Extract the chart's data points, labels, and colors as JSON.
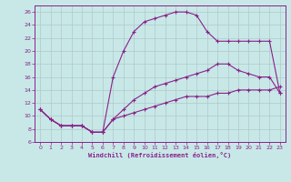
{
  "xlabel": "Windchill (Refroidissement éolien,°C)",
  "xlim": [
    -0.5,
    23.5
  ],
  "ylim": [
    6,
    27
  ],
  "yticks": [
    6,
    8,
    10,
    12,
    14,
    16,
    18,
    20,
    22,
    24,
    26
  ],
  "xticks": [
    0,
    1,
    2,
    3,
    4,
    5,
    6,
    7,
    8,
    9,
    10,
    11,
    12,
    13,
    14,
    15,
    16,
    17,
    18,
    19,
    20,
    21,
    22,
    23
  ],
  "background_color": "#c8e8e8",
  "grid_color": "#b0c8c8",
  "line_color": "#882288",
  "line1_x": [
    0,
    1,
    2,
    3,
    4,
    5,
    6,
    7,
    8,
    9,
    10,
    11,
    12,
    13,
    14,
    15,
    16,
    17,
    18,
    19,
    20,
    21,
    22,
    23
  ],
  "line1_y": [
    11,
    9.5,
    8.5,
    8.5,
    8.5,
    7.5,
    7.5,
    16,
    20,
    23,
    24.5,
    25,
    25.5,
    26,
    26,
    25.5,
    23,
    21.5,
    21.5,
    21.5,
    21.5,
    21.5,
    21.5,
    13.5
  ],
  "line2_x": [
    0,
    1,
    2,
    3,
    4,
    5,
    6,
    7,
    8,
    9,
    10,
    11,
    12,
    13,
    14,
    15,
    16,
    17,
    18,
    19,
    20,
    21,
    22,
    23
  ],
  "line2_y": [
    11,
    9.5,
    8.5,
    8.5,
    8.5,
    7.5,
    7.5,
    9.5,
    11,
    12.5,
    13.5,
    14.5,
    15,
    15.5,
    16,
    16.5,
    17,
    18,
    18,
    17,
    16.5,
    16,
    16,
    13.5
  ],
  "line3_x": [
    0,
    1,
    2,
    3,
    4,
    5,
    6,
    7,
    8,
    9,
    10,
    11,
    12,
    13,
    14,
    15,
    16,
    17,
    18,
    19,
    20,
    21,
    22,
    23
  ],
  "line3_y": [
    11,
    9.5,
    8.5,
    8.5,
    8.5,
    7.5,
    7.5,
    9.5,
    10,
    10.5,
    11,
    11.5,
    12,
    12.5,
    13,
    13,
    13,
    13.5,
    13.5,
    14,
    14,
    14,
    14,
    14.5
  ]
}
